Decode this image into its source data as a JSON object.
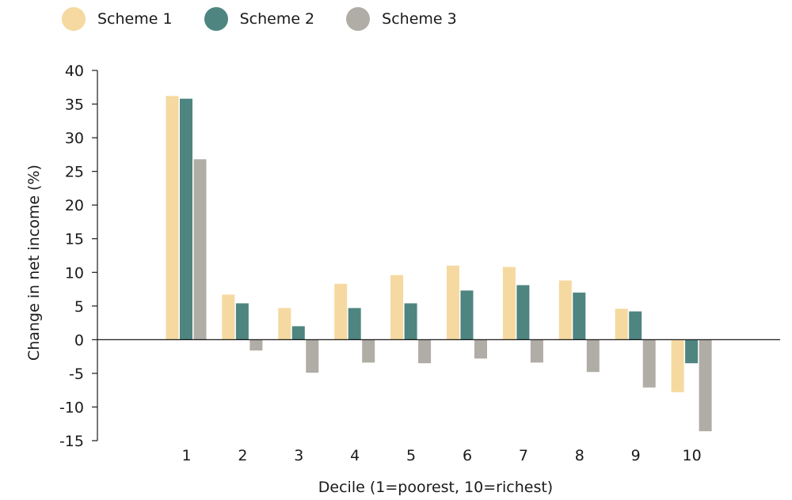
{
  "chart_data": {
    "type": "bar",
    "title": "",
    "xlabel": "Decile (1=poorest, 10=richest)",
    "ylabel": "Change in net income (%)",
    "ylim": [
      -15,
      40
    ],
    "yticks": [
      40,
      35,
      30,
      25,
      20,
      15,
      10,
      5,
      0,
      -5,
      -10,
      -15
    ],
    "categories": [
      "1",
      "2",
      "3",
      "4",
      "5",
      "6",
      "7",
      "8",
      "9",
      "10"
    ],
    "series": [
      {
        "name": "Scheme 1",
        "color": "#f5d9a0",
        "values": [
          36.2,
          6.7,
          4.7,
          8.3,
          9.6,
          11.0,
          10.8,
          8.8,
          4.6,
          -7.8
        ]
      },
      {
        "name": "Scheme 2",
        "color": "#4e8580",
        "values": [
          35.8,
          5.4,
          2.0,
          4.7,
          5.4,
          7.3,
          8.1,
          7.0,
          4.2,
          -3.5
        ]
      },
      {
        "name": "Scheme 3",
        "color": "#b0aca6",
        "values": [
          26.8,
          -1.6,
          -4.9,
          -3.4,
          -3.5,
          -2.8,
          -3.4,
          -4.8,
          -7.1,
          -13.6
        ]
      }
    ],
    "legend_position": "top-left",
    "grid": false
  }
}
